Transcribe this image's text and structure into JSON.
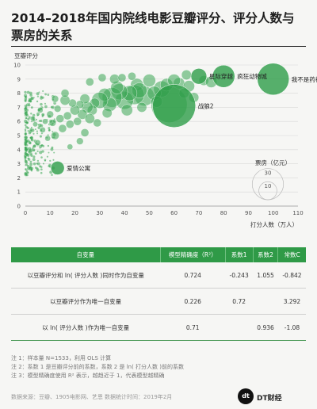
{
  "title": "2014–2018年国内院线电影豆瓣评分、评分人数与票房的关系",
  "chart_data": {
    "type": "scatter",
    "ylabel": "豆瓣评分",
    "xlabel": "打分人数（万人）",
    "xlim": [
      0,
      110
    ],
    "ylim": [
      0,
      10
    ],
    "xticks": [
      0,
      10,
      20,
      30,
      40,
      50,
      60,
      70,
      80,
      90,
      100,
      110
    ],
    "yticks": [
      0,
      1,
      2,
      3,
      4,
      5,
      6,
      7,
      8,
      9,
      10
    ],
    "size_legend": {
      "title": "票房（亿元）",
      "values": [
        30,
        10
      ]
    },
    "labeled_points": [
      {
        "label": "疯狂动物城",
        "x": 80,
        "y": 9.2,
        "box_office": 15.3
      },
      {
        "label": "我不是药神",
        "x": 100,
        "y": 9.0,
        "box_office": 31
      },
      {
        "label": "星际穿越",
        "x": 70,
        "y": 9.2,
        "box_office": 7.6
      },
      {
        "label": "战狼2",
        "x": 60,
        "y": 7.1,
        "box_office": 56.8
      },
      {
        "label": "爱情公寓",
        "x": 13,
        "y": 2.7,
        "box_office": 5.6
      }
    ],
    "points": [
      [
        58,
        7.2,
        40
      ],
      [
        55,
        8.3,
        8
      ],
      [
        48,
        7.8,
        12
      ],
      [
        52,
        8.0,
        6
      ],
      [
        45,
        8.6,
        5
      ],
      [
        44,
        7.9,
        12
      ],
      [
        46,
        8.2,
        7
      ],
      [
        40,
        7.5,
        10
      ],
      [
        42,
        8.0,
        7
      ],
      [
        38,
        8.1,
        8
      ],
      [
        35,
        7.7,
        12
      ],
      [
        37,
        8.4,
        5
      ],
      [
        34,
        7.2,
        6
      ],
      [
        32,
        7.9,
        5
      ],
      [
        30,
        7.5,
        8
      ],
      [
        28,
        7.3,
        3
      ],
      [
        27,
        6.8,
        3
      ],
      [
        25,
        7.0,
        4
      ],
      [
        24,
        7.6,
        3
      ],
      [
        23,
        6.5,
        3
      ],
      [
        22,
        7.2,
        2
      ],
      [
        21,
        6.0,
        2
      ],
      [
        20,
        6.8,
        3
      ],
      [
        19,
        7.3,
        2
      ],
      [
        18,
        5.8,
        2
      ],
      [
        17,
        6.4,
        2
      ],
      [
        16,
        7.5,
        3
      ],
      [
        15,
        5.5,
        2
      ],
      [
        14,
        6.2,
        2
      ],
      [
        13,
        6.9,
        1.5
      ],
      [
        12,
        5.0,
        2
      ],
      [
        11,
        5.9,
        1.5
      ],
      [
        10,
        6.5,
        1.5
      ],
      [
        9,
        4.8,
        1
      ],
      [
        8,
        6.0,
        1
      ],
      [
        7,
        5.4,
        1
      ],
      [
        6,
        6.8,
        1
      ],
      [
        5,
        4.5,
        1
      ],
      [
        4,
        5.8,
        0.8
      ],
      [
        3,
        6.2,
        0.8
      ],
      [
        26,
        8.8,
        2
      ],
      [
        31,
        9.1,
        2
      ],
      [
        36,
        9.0,
        3
      ],
      [
        50,
        8.9,
        5
      ],
      [
        62,
        8.7,
        4
      ],
      [
        66,
        8.5,
        4
      ],
      [
        64,
        8.0,
        3
      ],
      [
        72,
        8.9,
        3
      ],
      [
        33,
        6.6,
        3
      ],
      [
        29,
        5.9,
        2
      ],
      [
        24,
        5.2,
        2
      ],
      [
        22,
        4.6,
        1.5
      ],
      [
        18,
        4.2,
        1
      ],
      [
        16,
        8.0,
        2
      ],
      [
        12,
        7.6,
        1.5
      ],
      [
        26,
        6.2,
        3
      ],
      [
        41,
        6.8,
        4
      ],
      [
        47,
        7.0,
        3
      ],
      [
        53,
        7.4,
        4
      ],
      [
        57,
        8.6,
        5
      ],
      [
        39,
        9.1,
        2
      ],
      [
        43,
        9.2,
        2
      ],
      [
        65,
        9.3,
        3
      ],
      [
        75,
        8.8,
        4
      ],
      [
        60,
        8.9,
        5
      ],
      [
        68,
        7.7,
        3
      ]
    ],
    "table": {
      "headers": [
        "自变量",
        "模型精确度（R²）",
        "系数1",
        "系数2",
        "常数C"
      ],
      "rows": [
        {
          "var": "以豆瓣评分和 ln( 评分人数 )同时作为自变量",
          "r2": "0.724",
          "c1": "-0.243",
          "c2": "1.055",
          "c": "-0.842"
        },
        {
          "var": "以豆瓣评分作为唯一自变量",
          "r2": "0.226",
          "c1": "0.72",
          "c2": "",
          "c": "3.292"
        },
        {
          "var": "以 ln( 评分人数 )作为唯一自变量",
          "r2": "0.71",
          "c1": "",
          "c2": "0.936",
          "c": "-1.08"
        }
      ]
    }
  },
  "notes": [
    "注 1：样本量 N=1533，利用 OLS 计算",
    "注 2：系数 1 是豆瓣评分前的系数，系数 2 是 ln( 打分人数 )前的系数",
    "注 3：模型精确度使用 R² 表示，越趋近于 1，代表模型越精确"
  ],
  "source": "数据来源：豆瓣、1905电影网、艺恩  数据统计时间：2019年2月",
  "brand": {
    "logo": "dt",
    "name": "DT财经"
  },
  "colors": {
    "green": "#2f9a47",
    "bubble": "#4caf50"
  }
}
